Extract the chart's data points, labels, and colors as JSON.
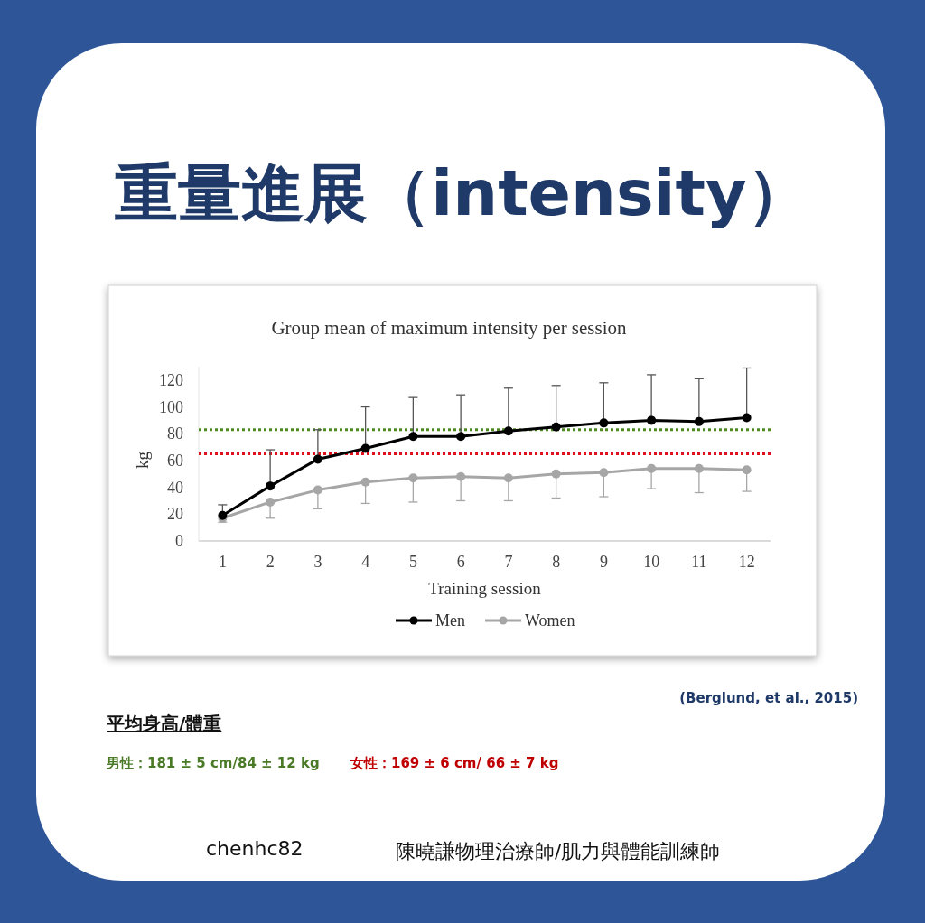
{
  "chart_data": {
    "type": "line",
    "title": "重量進展（intensity）",
    "subtitle": "Group mean of maximum intensity per session",
    "xlabel": "Training session",
    "ylabel": "kg",
    "categories": [
      "1",
      "2",
      "3",
      "4",
      "5",
      "6",
      "7",
      "8",
      "9",
      "10",
      "11",
      "12"
    ],
    "series": [
      {
        "name": "Men",
        "color": "#000000",
        "values": [
          19,
          41,
          61,
          69,
          78,
          78,
          82,
          85,
          88,
          90,
          89,
          92
        ],
        "errors": [
          [
            19,
            27
          ],
          [
            41,
            68
          ],
          [
            61,
            83
          ],
          [
            69,
            100
          ],
          [
            78,
            107
          ],
          [
            78,
            109
          ],
          [
            82,
            114
          ],
          [
            85,
            116
          ],
          [
            88,
            118
          ],
          [
            90,
            124
          ],
          [
            89,
            121
          ],
          [
            92,
            129
          ]
        ]
      },
      {
        "name": "Women",
        "color": "#a6a6a6",
        "values": [
          17,
          29,
          38,
          44,
          47,
          48,
          47,
          50,
          51,
          54,
          54,
          53
        ],
        "errors": [
          [
            14,
            17
          ],
          [
            17,
            29
          ],
          [
            24,
            38
          ],
          [
            28,
            44
          ],
          [
            29,
            47
          ],
          [
            30,
            48
          ],
          [
            30,
            47
          ],
          [
            32,
            50
          ],
          [
            33,
            51
          ],
          [
            39,
            54
          ],
          [
            36,
            54
          ],
          [
            37,
            53
          ]
        ]
      }
    ],
    "ylim": [
      0,
      130
    ],
    "yticks": [
      0,
      20,
      40,
      60,
      80,
      100,
      120
    ],
    "ref_lines": [
      {
        "axis": "y",
        "value": 83,
        "color": "#4e8a22",
        "line_style": "dotted"
      },
      {
        "axis": "y",
        "value": 65,
        "color": "#e0101a",
        "line_style": "dotted"
      }
    ],
    "marker": "circle",
    "line_style": "solid",
    "legend": "bottom",
    "annotations": [
      "(Berglund, et al., 2015)",
      "平均身高/體重",
      "男性：181 ± 5 cm/84 ± 12 kg",
      "女性：169 ± 6 cm/ 66 ± 7 kg",
      "chenhc82",
      "陳曉謙物理治療師/肌力與體能訓練師"
    ]
  }
}
